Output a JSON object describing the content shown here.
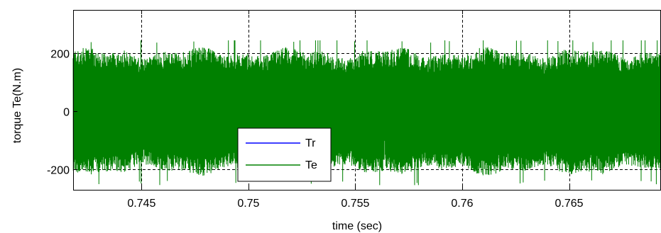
{
  "chart_data": {
    "type": "line",
    "title": "",
    "xlabel": "time (sec)",
    "ylabel": "torque Te(N.m)",
    "xlim": [
      0.7418,
      0.7693
    ],
    "ylim": [
      -270,
      350
    ],
    "grid": true,
    "grid_style": "dashed",
    "xticks": [
      0.745,
      0.75,
      0.755,
      0.76,
      0.765
    ],
    "xtick_labels": [
      "0.745",
      "0.75",
      "0.755",
      "0.76",
      "0.765"
    ],
    "yticks": [
      -200,
      0,
      200
    ],
    "ytick_labels": [
      "-200",
      "0",
      "200"
    ],
    "legend_position": "bottom-center-left",
    "series": [
      {
        "name": "Tr",
        "color": "#0000ff",
        "description_of_values": "hidden behind Te trace"
      },
      {
        "name": "Te",
        "color": "#008000",
        "signal": {
          "kind": "high-frequency oscillation",
          "envelope_upper_typical": 200,
          "envelope_lower_typical": -200,
          "peak_max": 245,
          "peak_min": -255,
          "mean": 0
        }
      }
    ]
  }
}
